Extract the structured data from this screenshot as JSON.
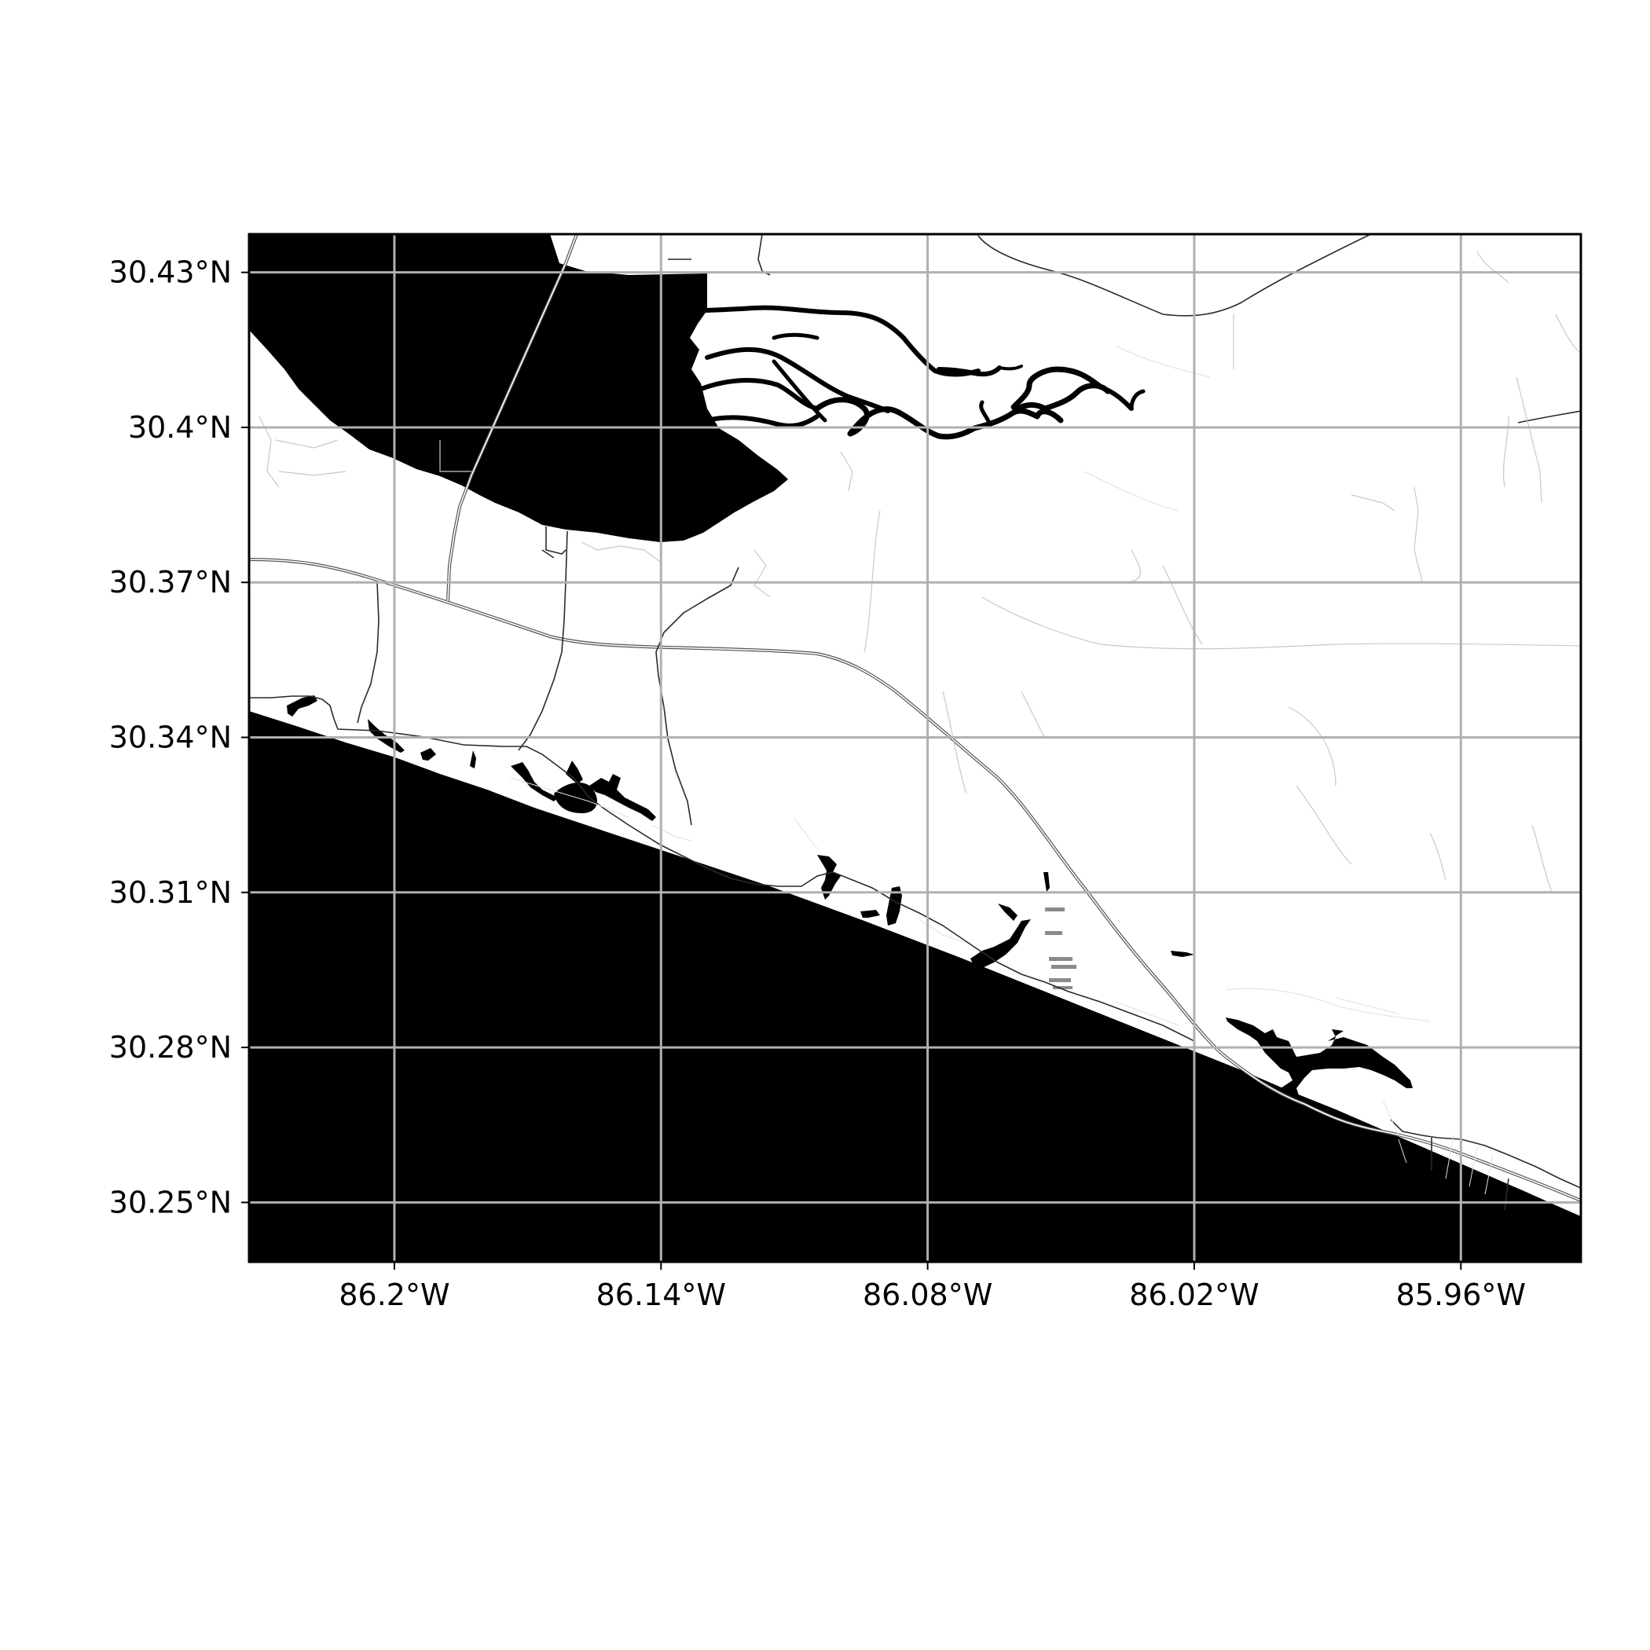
{
  "map": {
    "type": "coastline map",
    "colors": {
      "water": "#000000",
      "land": "#ffffff",
      "grid": "#b0b0b0",
      "roads": "#2a2a2a"
    },
    "grid": true,
    "lon_range": [
      -86.2327,
      -85.933
    ],
    "lat_range": [
      30.2385,
      30.4374
    ],
    "longitude_ticks": [
      {
        "value": -86.2,
        "label": "86.2°W"
      },
      {
        "value": -86.14,
        "label": "86.14°W"
      },
      {
        "value": -86.08,
        "label": "86.08°W"
      },
      {
        "value": -86.02,
        "label": "86.02°W"
      },
      {
        "value": -85.96,
        "label": "85.96°W"
      }
    ],
    "latitude_ticks": [
      {
        "value": 30.43,
        "label": "30.43°N"
      },
      {
        "value": 30.4,
        "label": "30.4°N"
      },
      {
        "value": 30.37,
        "label": "30.37°N"
      },
      {
        "value": 30.34,
        "label": "30.34°N"
      },
      {
        "value": 30.31,
        "label": "30.31°N"
      },
      {
        "value": 30.28,
        "label": "30.28°N"
      },
      {
        "value": 30.25,
        "label": "30.25°N"
      }
    ]
  }
}
